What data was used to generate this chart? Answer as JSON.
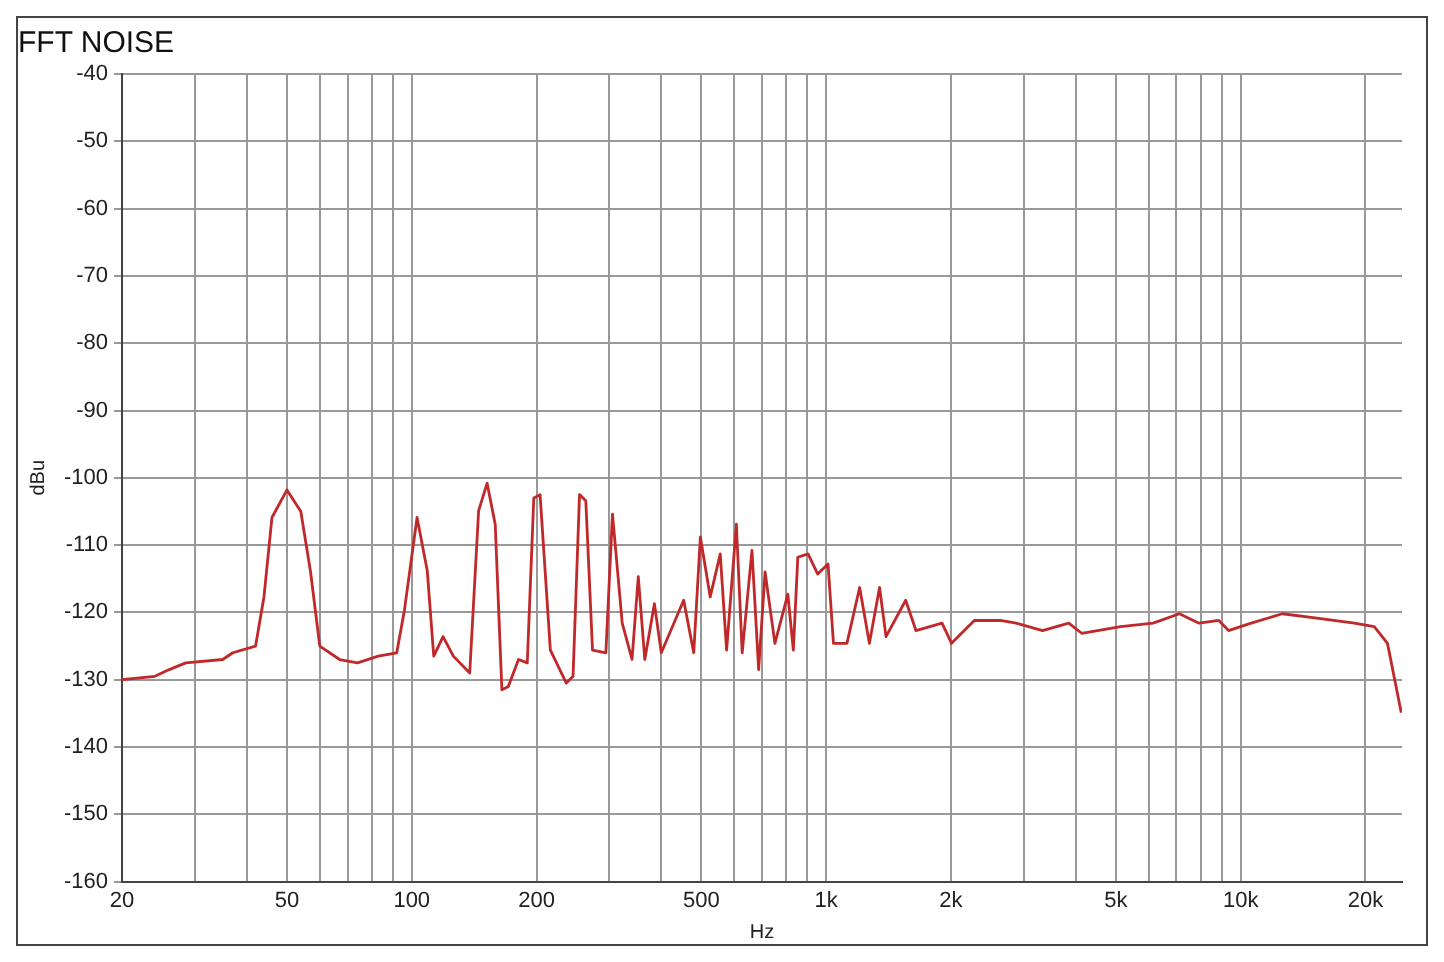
{
  "chart_data": {
    "type": "line",
    "title": "FFT NOISE",
    "xlabel": "Hz",
    "ylabel": "dBu",
    "log": "x",
    "grid": true,
    "legend": false,
    "marker": "none",
    "line_style": "solid",
    "xlim": [
      20,
      24500
    ],
    "ylim": [
      -160,
      -40
    ],
    "xticks": [
      20,
      {
        "value": 30,
        "label": null
      },
      {
        "value": 40,
        "label": null
      },
      50,
      {
        "value": 60,
        "label": null
      },
      {
        "value": 70,
        "label": null
      },
      {
        "value": 80,
        "label": null
      },
      {
        "value": 90,
        "label": null
      },
      100,
      200,
      {
        "value": 300,
        "label": null
      },
      {
        "value": 400,
        "label": null
      },
      500,
      {
        "value": 600,
        "label": null
      },
      {
        "value": 700,
        "label": null
      },
      {
        "value": 800,
        "label": null
      },
      {
        "value": 900,
        "label": null
      },
      {
        "value": 1000,
        "label": "1k"
      },
      {
        "value": 2000,
        "label": "2k"
      },
      {
        "value": 3000,
        "label": null
      },
      {
        "value": 4000,
        "label": null
      },
      {
        "value": 5000,
        "label": "5k"
      },
      {
        "value": 6000,
        "label": null
      },
      {
        "value": 7000,
        "label": null
      },
      {
        "value": 8000,
        "label": null
      },
      {
        "value": 9000,
        "label": null
      },
      {
        "value": 10000,
        "label": "10k"
      },
      {
        "value": 20000,
        "label": "20k"
      }
    ],
    "yticks": [
      -160,
      -150,
      -140,
      -130,
      -120,
      -110,
      -100,
      -90,
      -80,
      -70,
      -60,
      -50,
      -40
    ],
    "series": [
      {
        "color": "#c0282a",
        "x": [
          20,
          24,
          26,
          28.5,
          35,
          37,
          42,
          44,
          46,
          50,
          54,
          57,
          60,
          67,
          74,
          83,
          92,
          96,
          103,
          109,
          113,
          119,
          126,
          138,
          145,
          152,
          159,
          165,
          171,
          181,
          190,
          197,
          204,
          216,
          236,
          245,
          254,
          263,
          273,
          294,
          305,
          322,
          340,
          352,
          365,
          385,
          400,
          453,
          479,
          497,
          525,
          555,
          575,
          607,
          627,
          662,
          687,
          712,
          752,
          808,
          833,
          854,
          904,
          954,
          1010,
          1041,
          1122,
          1204,
          1271,
          1345,
          1394,
          1555,
          1646,
          1903,
          2006,
          2277,
          2631,
          2872,
          3326,
          3847,
          4134,
          5132,
          6147,
          7113,
          7935,
          8853,
          9348,
          10600,
          12600,
          15100,
          18800,
          21000,
          22600,
          24400
        ],
        "values": [
          -130,
          -129.5,
          -128.5,
          -127.5,
          -127,
          -126,
          -125,
          -117.7,
          -105.9,
          -101.8,
          -105,
          -114,
          -125,
          -127,
          -127.5,
          -126.5,
          -126,
          -119.7,
          -105.9,
          -113.8,
          -126.5,
          -123.6,
          -126.5,
          -129,
          -104.9,
          -100.8,
          -106.9,
          -131.5,
          -131,
          -127,
          -127.5,
          -103,
          -102.5,
          -125.6,
          -130.5,
          -129.5,
          -102.5,
          -103.4,
          -125.6,
          -126,
          -105.4,
          -121.6,
          -127,
          -114.7,
          -127,
          -118.7,
          -126,
          -118.2,
          -126,
          -108.8,
          -117.7,
          -111.3,
          -125.6,
          -106.9,
          -126,
          -110.8,
          -128.5,
          -114,
          -124.6,
          -117.3,
          -125.6,
          -111.8,
          -111.3,
          -114.3,
          -112.8,
          -124.6,
          -124.6,
          -116.3,
          -124.6,
          -116.3,
          -123.6,
          -118.2,
          -122.7,
          -121.6,
          -124.6,
          -121.2,
          -121.2,
          -121.6,
          -122.7,
          -121.6,
          -123.1,
          -122.1,
          -121.6,
          -120.2,
          -121.6,
          -121.2,
          -122.7,
          -121.6,
          -120.2,
          -120.8,
          -121.6,
          -122.1,
          -124.6,
          -134.9
        ]
      }
    ]
  }
}
